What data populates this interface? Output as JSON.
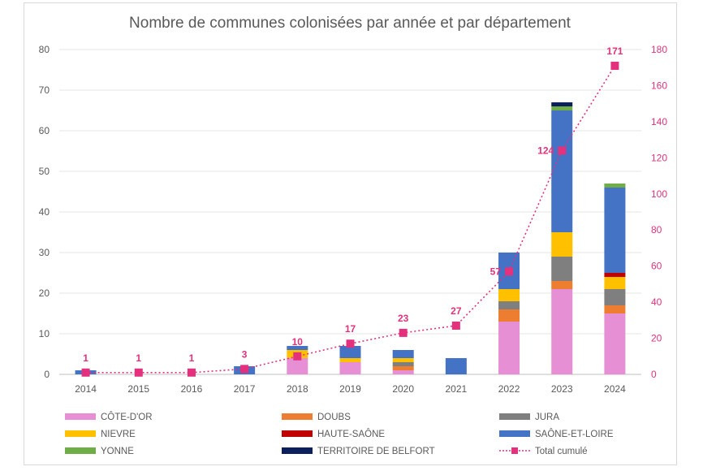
{
  "chart_data": {
    "type": "bar",
    "stacked": true,
    "title": "Nombre de communes colonisées par année et par département",
    "categories": [
      "2014",
      "2015",
      "2016",
      "2017",
      "2018",
      "2019",
      "2020",
      "2021",
      "2022",
      "2023",
      "2024"
    ],
    "ylim": [
      0,
      80
    ],
    "y_ticks": [
      "0",
      "10",
      "20",
      "30",
      "40",
      "50",
      "60",
      "70",
      "80"
    ],
    "y2lim": [
      0,
      180
    ],
    "y2_ticks": [
      "0",
      "20",
      "40",
      "60",
      "80",
      "100",
      "120",
      "140",
      "160",
      "180"
    ],
    "grid": true,
    "legend_position": "bottom",
    "series": [
      {
        "name": "CÔTE-D'OR",
        "color": "#e68fd4",
        "values": [
          0,
          0,
          0,
          0,
          4,
          3,
          1,
          0,
          13,
          21,
          15
        ]
      },
      {
        "name": "DOUBS",
        "color": "#ed7d31",
        "values": [
          0,
          0,
          0,
          0,
          0,
          0,
          1,
          0,
          3,
          2,
          2
        ]
      },
      {
        "name": "JURA",
        "color": "#7f7f7f",
        "values": [
          0,
          0,
          0,
          0,
          0,
          0,
          1,
          0,
          2,
          6,
          4
        ]
      },
      {
        "name": "NIEVRE",
        "color": "#ffc000",
        "values": [
          0,
          0,
          0,
          0,
          2,
          1,
          1,
          0,
          3,
          6,
          3
        ]
      },
      {
        "name": "HAUTE-SAÔNE",
        "color": "#c00000",
        "values": [
          0,
          0,
          0,
          0,
          0,
          0,
          0,
          0,
          0,
          0,
          1
        ]
      },
      {
        "name": "SAÔNE-ET-LOIRE",
        "color": "#4472c4",
        "values": [
          1,
          0,
          0,
          2,
          1,
          3,
          2,
          4,
          9,
          30,
          21
        ]
      },
      {
        "name": "YONNE",
        "color": "#70ad47",
        "values": [
          0,
          0,
          0,
          0,
          0,
          0,
          0,
          0,
          0,
          1,
          1
        ]
      },
      {
        "name": "TERRITOIRE DE BELFORT",
        "color": "#0b1f5c",
        "values": [
          0,
          0,
          0,
          0,
          0,
          0,
          0,
          0,
          0,
          1,
          0
        ]
      }
    ],
    "line_series": {
      "name": "Total cumulé",
      "color": "#e3317d",
      "axis": "right",
      "values": [
        1,
        1,
        1,
        3,
        10,
        17,
        23,
        27,
        57,
        124,
        171
      ],
      "labels": [
        "1",
        "1",
        "1",
        "3",
        "10",
        "17",
        "23",
        "27",
        "57",
        "124",
        "171"
      ]
    }
  }
}
